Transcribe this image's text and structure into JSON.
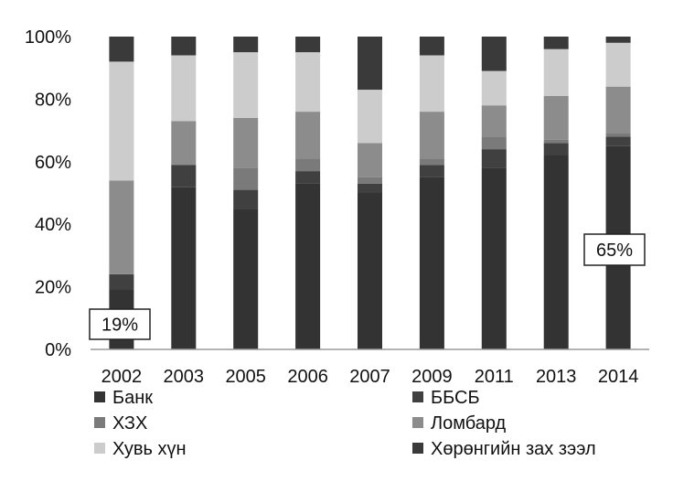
{
  "chart_data": {
    "type": "bar",
    "stacked": true,
    "percent": true,
    "categories": [
      "2002",
      "2003",
      "2005",
      "2006",
      "2007",
      "2009",
      "2011",
      "2013",
      "2014"
    ],
    "series": [
      {
        "name": "Банк",
        "color": "#333333",
        "values": [
          19,
          52,
          45,
          53,
          50,
          55,
          58,
          62,
          65
        ]
      },
      {
        "name": "ББСБ",
        "color": "#404040",
        "values": [
          5,
          7,
          6,
          4,
          3,
          4,
          6,
          4,
          3
        ]
      },
      {
        "name": "ХЗХ",
        "color": "#7a7a7a",
        "values": [
          0,
          0,
          7,
          4,
          2,
          2,
          4,
          1,
          1
        ]
      },
      {
        "name": "Ломбард",
        "color": "#8c8c8c",
        "values": [
          30,
          14,
          16,
          15,
          11,
          15,
          10,
          14,
          15
        ]
      },
      {
        "name": "Хувь хүн",
        "color": "#cccccc",
        "values": [
          38,
          21,
          21,
          19,
          17,
          18,
          11,
          15,
          14
        ]
      },
      {
        "name": "Хөрөнгийн зах зээл",
        "color": "#3a3a3a",
        "values": [
          8,
          6,
          5,
          5,
          17,
          6,
          11,
          4,
          2
        ]
      }
    ],
    "ylim": [
      0,
      100
    ],
    "yticks": [
      "0%",
      "20%",
      "40%",
      "60%",
      "80%",
      "100%"
    ],
    "legend_position": "bottom",
    "grid": false,
    "annotations": [
      {
        "text": "19%",
        "category": "2002"
      },
      {
        "text": "65%",
        "category": "2014"
      }
    ]
  }
}
